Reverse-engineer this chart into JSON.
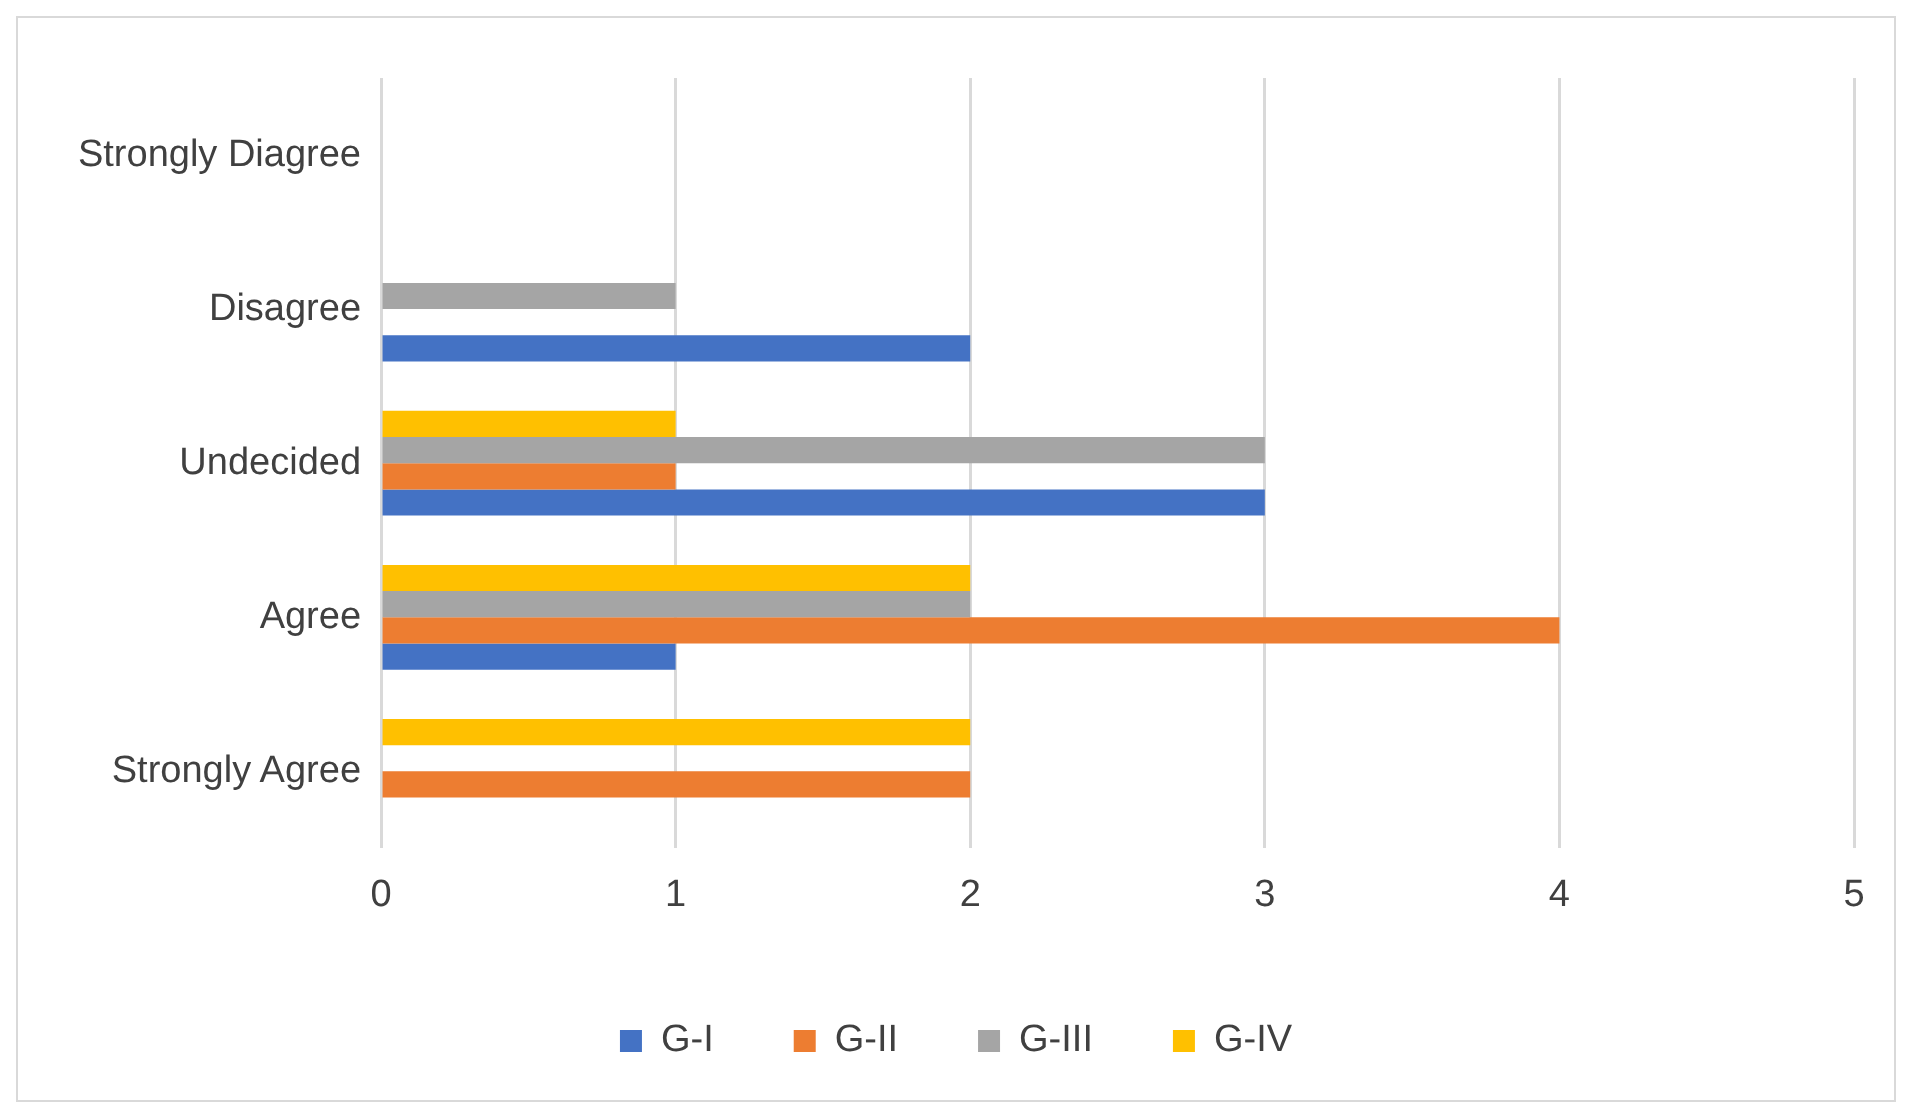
{
  "chart_data": {
    "type": "bar",
    "orientation": "horizontal",
    "categories": [
      "Strongly Diagree",
      "Disagree",
      "Undecided",
      "Agree",
      "Strongly Agree"
    ],
    "series": [
      {
        "name": "G-I",
        "color": "#4472c4",
        "values": [
          0,
          2,
          3,
          1,
          0
        ]
      },
      {
        "name": "G-II",
        "color": "#ed7d31",
        "values": [
          0,
          0,
          1,
          4,
          2
        ]
      },
      {
        "name": "G-III",
        "color": "#a5a5a5",
        "values": [
          0,
          1,
          3,
          2,
          0
        ]
      },
      {
        "name": "G-IV",
        "color": "#ffc000",
        "values": [
          0,
          0,
          1,
          2,
          2
        ]
      }
    ],
    "xlim": [
      0,
      5
    ],
    "xticks": [
      0,
      1,
      2,
      3,
      4,
      5
    ],
    "grid": "x",
    "legend": "bottom"
  }
}
